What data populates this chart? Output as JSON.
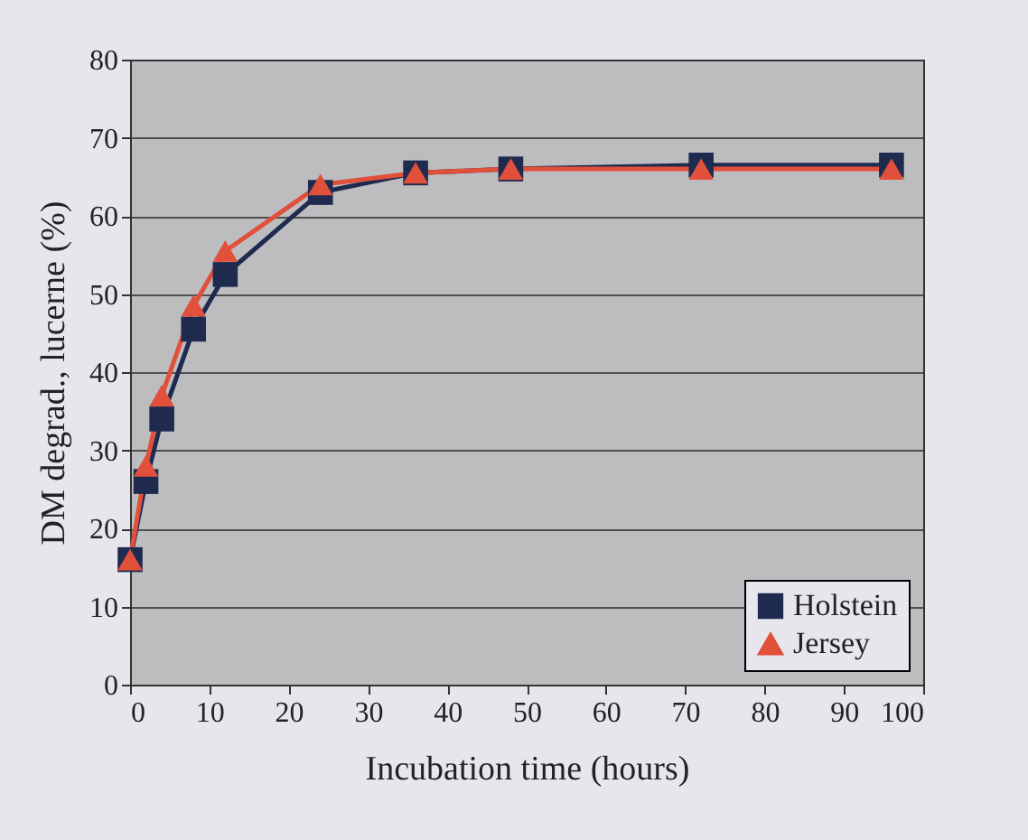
{
  "chart_data": {
    "type": "line",
    "xlabel": "Incubation time (hours)",
    "ylabel": "DM degrad., lucerne (%)",
    "x": [
      0,
      2,
      4,
      8,
      12,
      24,
      36,
      48,
      72,
      96
    ],
    "series": [
      {
        "name": "Holstein",
        "color": "#1f2a4f",
        "marker": "square",
        "values": [
          16,
          26,
          34,
          45.5,
          52.5,
          63,
          65.5,
          66,
          66.5,
          66.5
        ]
      },
      {
        "name": "Jersey",
        "color": "#e0503a",
        "marker": "triangle",
        "values": [
          16,
          28,
          37,
          48.5,
          55.5,
          64,
          65.5,
          66,
          66,
          66
        ]
      }
    ],
    "xlim": [
      0,
      100
    ],
    "xticks": [
      0,
      10,
      20,
      30,
      40,
      50,
      60,
      70,
      80,
      90,
      100
    ],
    "ylim": [
      0,
      80
    ],
    "yticks": [
      0,
      10,
      20,
      30,
      40,
      50,
      60,
      70,
      80
    ],
    "grid": "y",
    "legend": "bottom right",
    "line_style": "solid"
  }
}
